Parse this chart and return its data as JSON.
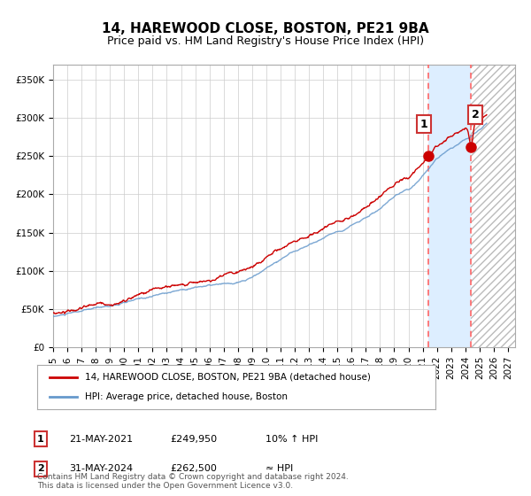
{
  "title": "14, HAREWOOD CLOSE, BOSTON, PE21 9BA",
  "subtitle": "Price paid vs. HM Land Registry's House Price Index (HPI)",
  "ylim": [
    0,
    370000
  ],
  "yticks": [
    0,
    50000,
    100000,
    150000,
    200000,
    250000,
    300000,
    350000
  ],
  "xlim_start": 1995.0,
  "xlim_end": 2027.5,
  "legend_line1": "14, HAREWOOD CLOSE, BOSTON, PE21 9BA (detached house)",
  "legend_line2": "HPI: Average price, detached house, Boston",
  "marker1_date": 2021.38,
  "marker1_value": 249950,
  "marker1_label": "1",
  "marker2_date": 2024.41,
  "marker2_value": 262500,
  "marker2_label": "2",
  "shade_start": 2021.38,
  "shade_end": 2024.41,
  "hatch_start": 2024.41,
  "hatch_end": 2027.5,
  "line_color_red": "#cc0000",
  "line_color_blue": "#6699cc",
  "shade_color": "#ddeeff",
  "footer": "Contains HM Land Registry data © Crown copyright and database right 2024.\nThis data is licensed under the Open Government Licence v3.0.",
  "grid_color": "#cccccc",
  "dashed_line_color": "#ff6666"
}
